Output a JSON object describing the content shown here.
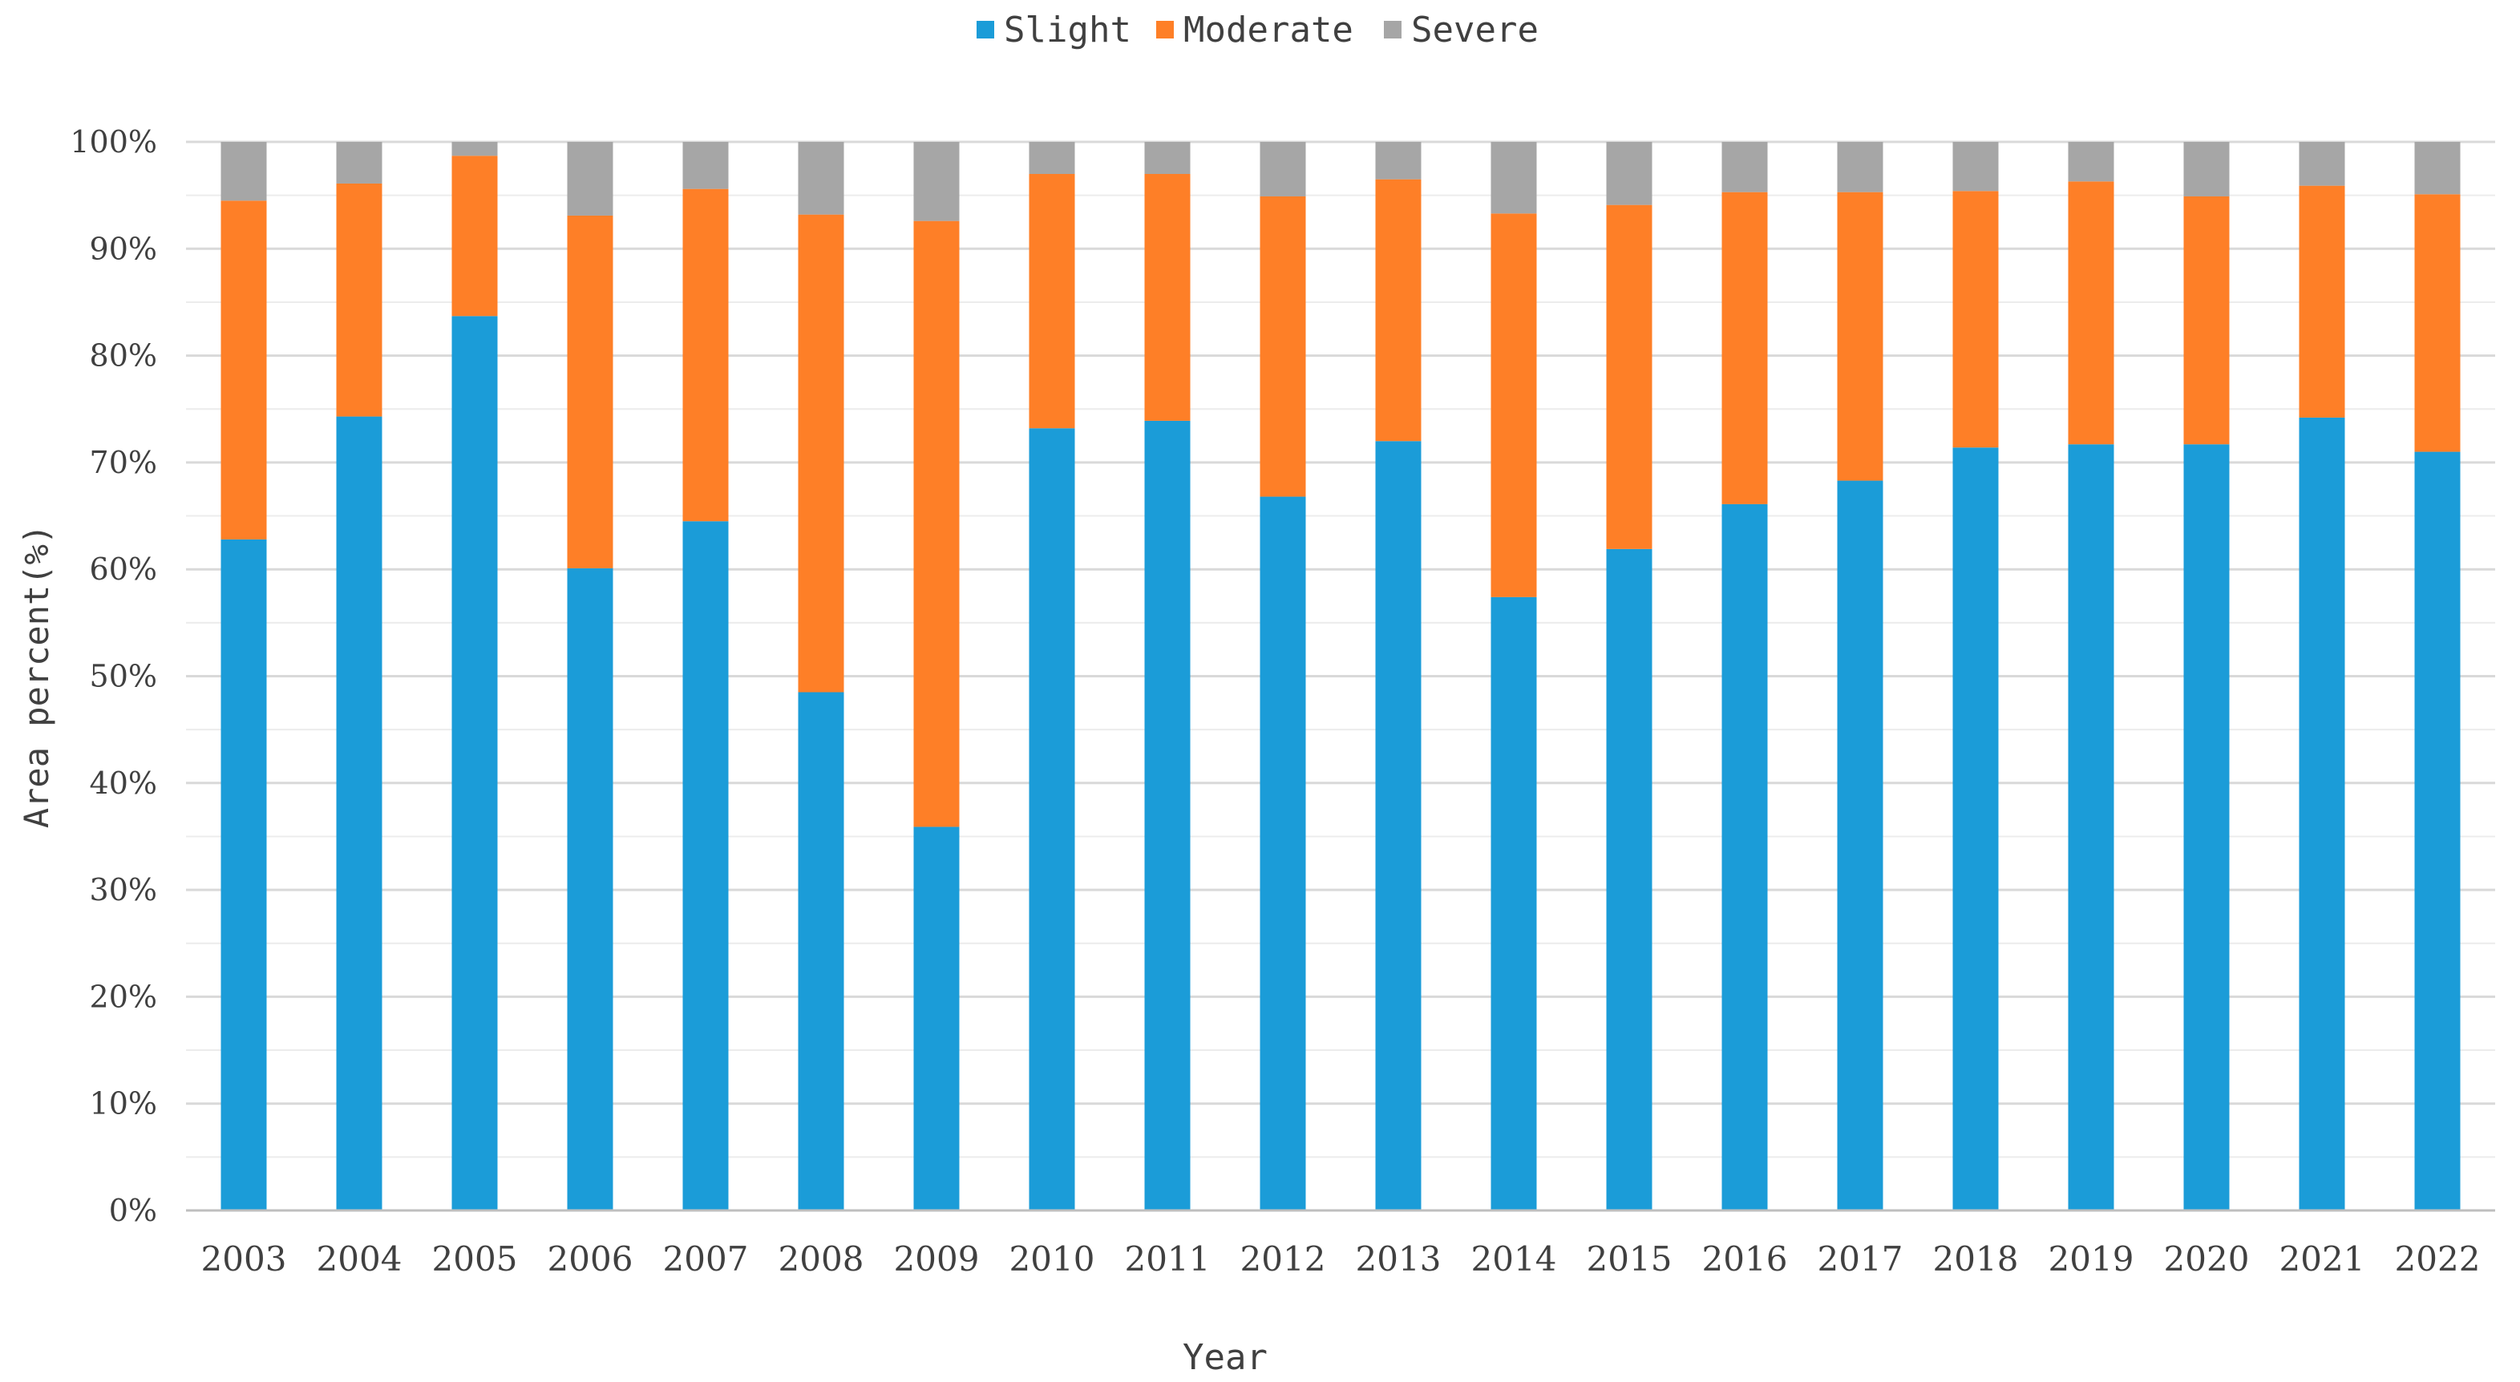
{
  "chart_data": {
    "type": "bar",
    "stacked": true,
    "title": "",
    "xlabel": "Year",
    "ylabel": "Area percent(%)",
    "ylim": [
      0,
      100
    ],
    "yticks": [
      0,
      10,
      20,
      30,
      40,
      50,
      60,
      70,
      80,
      90,
      100
    ],
    "ytick_labels": [
      "0%",
      "10%",
      "20%",
      "30%",
      "40%",
      "50%",
      "60%",
      "70%",
      "80%",
      "90%",
      "100%"
    ],
    "grid": true,
    "legend_position": "top-center",
    "categories": [
      "2003",
      "2004",
      "2005",
      "2006",
      "2007",
      "2008",
      "2009",
      "2010",
      "2011",
      "2012",
      "2013",
      "2014",
      "2015",
      "2016",
      "2017",
      "2018",
      "2019",
      "2020",
      "2021",
      "2022"
    ],
    "series": [
      {
        "name": "Slight",
        "color": "#1b9cd8",
        "values": [
          62.8,
          74.3,
          83.7,
          60.1,
          64.5,
          48.5,
          35.9,
          73.2,
          73.9,
          66.8,
          72.0,
          57.4,
          61.9,
          66.1,
          68.3,
          71.4,
          71.7,
          71.7,
          74.2,
          71.0
        ]
      },
      {
        "name": "Moderate",
        "color": "#fe7f27",
        "values": [
          31.7,
          21.8,
          15.0,
          33.0,
          31.1,
          44.7,
          56.7,
          23.8,
          23.1,
          28.1,
          24.5,
          35.9,
          32.2,
          29.2,
          27.0,
          24.0,
          24.6,
          23.2,
          21.7,
          24.1
        ]
      },
      {
        "name": "Severe",
        "color": "#a6a6a6",
        "values": [
          5.5,
          3.9,
          1.3,
          6.9,
          4.4,
          6.8,
          7.4,
          3.0,
          3.0,
          5.1,
          3.5,
          6.7,
          5.9,
          4.7,
          4.7,
          4.6,
          3.7,
          5.1,
          4.1,
          4.9
        ]
      }
    ]
  }
}
